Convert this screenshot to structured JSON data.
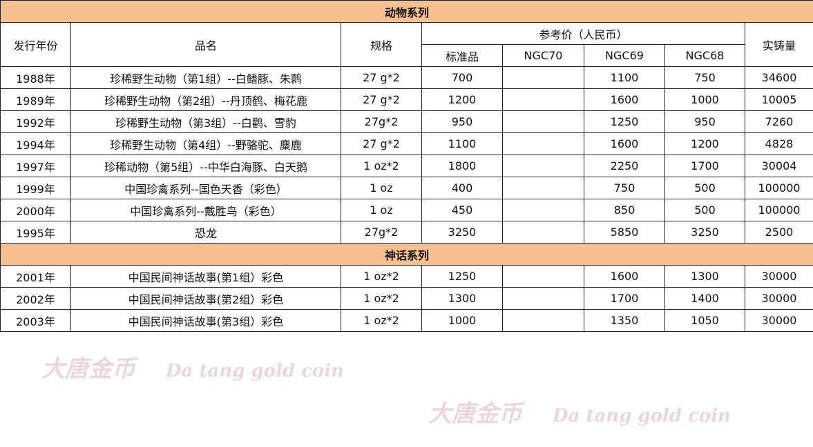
{
  "sections": [
    {
      "title": "动物系列",
      "rows": [
        {
          "year": "1988年",
          "name": "珍稀野生动物（第1组）--白鳍豚、朱鹮",
          "spec": "27 g*2",
          "std": "700",
          "ngc70": "",
          "ngc69": "1100",
          "ngc68": "750",
          "mintage": "34600"
        },
        {
          "year": "1989年",
          "name": "珍稀野生动物（第2组）--丹顶鹤、梅花鹿",
          "spec": "27 g*2",
          "std": "1200",
          "ngc70": "",
          "ngc69": "1600",
          "ngc68": "1000",
          "mintage": "10005"
        },
        {
          "year": "1992年",
          "name": "珍稀野生动物（第3组）--白鹳、雪豹",
          "spec": "27g*2",
          "std": "950",
          "ngc70": "",
          "ngc69": "1250",
          "ngc68": "950",
          "mintage": "7260"
        },
        {
          "year": "1994年",
          "name": "珍稀野生动物（第4组）--野骆驼、麋鹿",
          "spec": "27 g*2",
          "std": "1100",
          "ngc70": "",
          "ngc69": "1600",
          "ngc68": "1200",
          "mintage": "4828"
        },
        {
          "year": "1997年",
          "name": "珍稀动物（第5组）--中华白海豚、白天鹅",
          "spec": "1 oz*2",
          "std": "1800",
          "ngc70": "",
          "ngc69": "2250",
          "ngc68": "1700",
          "mintage": "30004"
        },
        {
          "year": "1999年",
          "name": "中国珍禽系列--国色天香（彩色）",
          "spec": "1 oz",
          "std": "400",
          "ngc70": "",
          "ngc69": "750",
          "ngc68": "500",
          "mintage": "100000"
        },
        {
          "year": "2000年",
          "name": "中国珍禽系列--戴胜鸟（彩色）",
          "spec": "1 oz",
          "std": "450",
          "ngc70": "",
          "ngc69": "850",
          "ngc68": "500",
          "mintage": "100000"
        },
        {
          "year": "1995年",
          "name": "恐龙",
          "spec": "27g*2",
          "std": "3250",
          "ngc70": "",
          "ngc69": "5850",
          "ngc68": "3250",
          "mintage": "2500"
        }
      ]
    },
    {
      "title": "神话系列",
      "rows": [
        {
          "year": "2001年",
          "name": "中国民间神话故事(第1组）彩色",
          "spec": "1 oz*2",
          "std": "1250",
          "ngc70": "",
          "ngc69": "1600",
          "ngc68": "1300",
          "mintage": "30000"
        },
        {
          "year": "2002年",
          "name": "中国民间神话故事(第2组）彩色",
          "spec": "1 oz*2",
          "std": "1300",
          "ngc70": "",
          "ngc69": "1700",
          "ngc68": "1400",
          "mintage": "30000"
        },
        {
          "year": "2003年",
          "name": "中国民间神话故事(第3组）彩色",
          "spec": "1 oz*2",
          "std": "1000",
          "ngc70": "",
          "ngc69": "1350",
          "ngc68": "1050",
          "mintage": "30000"
        }
      ]
    }
  ],
  "header": {
    "year": "发行年份",
    "name": "品名",
    "spec": "规格",
    "price": "参考价（人民币）",
    "std": "标准品",
    "ngc70": "NGC70",
    "ngc69": "NGC69",
    "ngc68": "NGC68",
    "mintage": "实铸量"
  },
  "watermark": [
    "大唐金币",
    "Da tang gold coin"
  ],
  "colors": {
    "section_bg": "#f8bf8f",
    "border": "#222222"
  }
}
